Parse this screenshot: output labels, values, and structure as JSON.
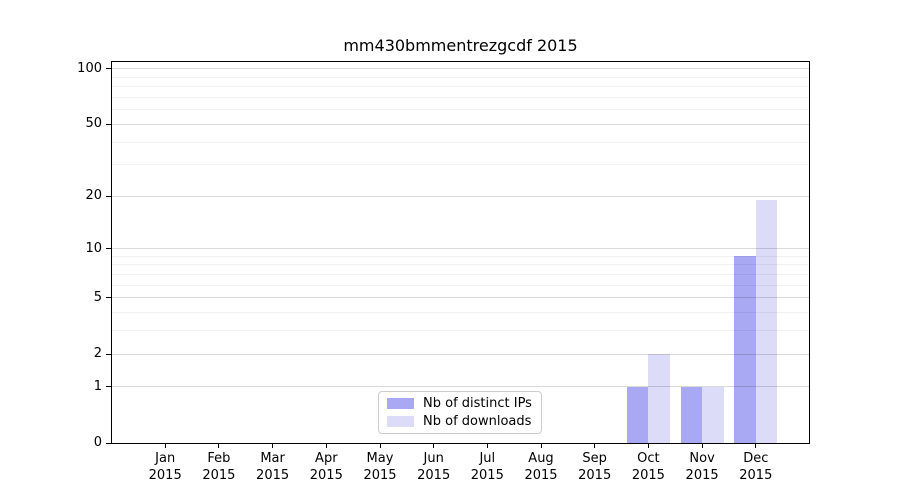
{
  "chart_data": {
    "type": "bar",
    "title": "mm430bmmentrezgcdf 2015",
    "categories": [
      [
        "Jan",
        "2015"
      ],
      [
        "Feb",
        "2015"
      ],
      [
        "Mar",
        "2015"
      ],
      [
        "Apr",
        "2015"
      ],
      [
        "May",
        "2015"
      ],
      [
        "Jun",
        "2015"
      ],
      [
        "Jul",
        "2015"
      ],
      [
        "Aug",
        "2015"
      ],
      [
        "Sep",
        "2015"
      ],
      [
        "Oct",
        "2015"
      ],
      [
        "Nov",
        "2015"
      ],
      [
        "Dec",
        "2015"
      ]
    ],
    "series": [
      {
        "name": "Nb of distinct IPs",
        "color": "#a8a8f3",
        "values": [
          0,
          0,
          0,
          0,
          0,
          0,
          0,
          0,
          0,
          1,
          1,
          9
        ]
      },
      {
        "name": "Nb of downloads",
        "color": "#dcdcf8",
        "values": [
          0,
          0,
          0,
          0,
          0,
          0,
          0,
          0,
          0,
          2,
          1,
          19
        ]
      }
    ],
    "y_scale": "log1p",
    "y_major_ticks": [
      0,
      1,
      2,
      5,
      10,
      20,
      50,
      100
    ],
    "y_minor_ticks": [
      3,
      4,
      6,
      7,
      8,
      9,
      30,
      40,
      60,
      70,
      80,
      90
    ],
    "ylim": [
      0,
      109
    ],
    "xlim": [
      -0.99,
      11.99
    ],
    "bar_width_units": 0.4,
    "grid": true,
    "legend_position": "lower center",
    "colors": {
      "spine": "#000000",
      "text": "#000000",
      "grid_major": "rgba(0,0,0,0.15)",
      "grid_minor": "rgba(0,0,0,0.055)",
      "tick": "#000000"
    }
  }
}
